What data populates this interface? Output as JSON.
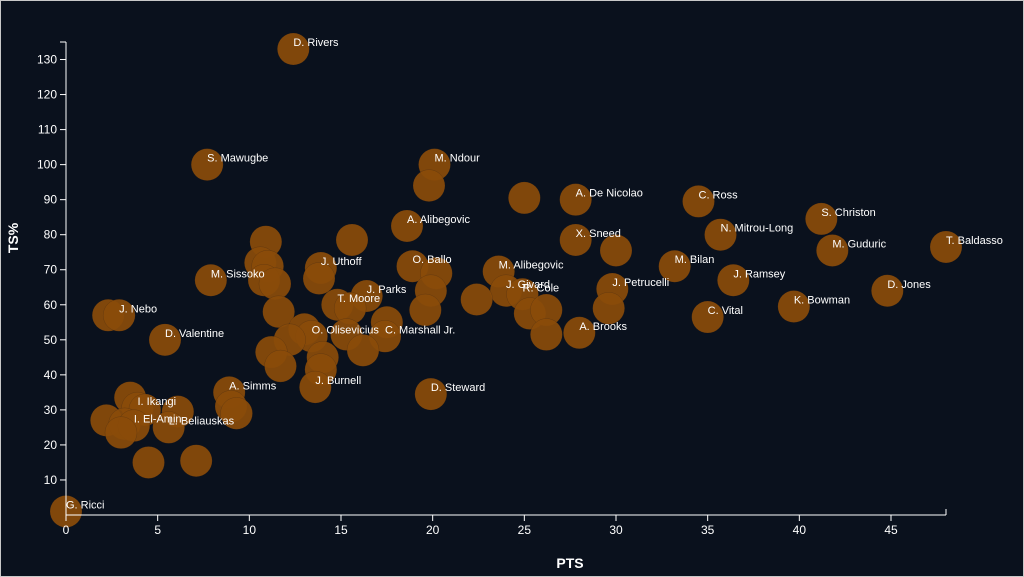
{
  "chart_data": {
    "type": "scatter",
    "title": "",
    "xlabel": "PTS",
    "ylabel": "TS%",
    "xlim": [
      0,
      48
    ],
    "ylim": [
      0,
      135
    ],
    "xticks": [
      0,
      5,
      10,
      15,
      20,
      25,
      30,
      35,
      40,
      45
    ],
    "yticks": [
      10,
      20,
      30,
      40,
      50,
      60,
      70,
      80,
      90,
      100,
      110,
      120,
      130
    ],
    "marker_color": "#8a4b0a",
    "points": [
      {
        "x": 12.4,
        "y": 133,
        "label": "D. Rivers"
      },
      {
        "x": 7.7,
        "y": 100,
        "label": "S. Mawugbe"
      },
      {
        "x": 20.1,
        "y": 100,
        "label": "M. Ndour"
      },
      {
        "x": 19.8,
        "y": 94,
        "label": ""
      },
      {
        "x": 25.0,
        "y": 90.5,
        "label": ""
      },
      {
        "x": 27.8,
        "y": 90,
        "label": "A. De Nicolao"
      },
      {
        "x": 34.5,
        "y": 89.5,
        "label": "C. Ross"
      },
      {
        "x": 41.2,
        "y": 84.5,
        "label": "S. Christon"
      },
      {
        "x": 35.7,
        "y": 80,
        "label": "N. Mitrou-Long"
      },
      {
        "x": 18.6,
        "y": 82.5,
        "label": "A. Alibegovic"
      },
      {
        "x": 15.6,
        "y": 78.5,
        "label": ""
      },
      {
        "x": 10.9,
        "y": 78,
        "label": ""
      },
      {
        "x": 27.8,
        "y": 78.5,
        "label": "X. Sneed"
      },
      {
        "x": 30.0,
        "y": 75.5,
        "label": ""
      },
      {
        "x": 41.8,
        "y": 75.5,
        "label": "M. Guduric"
      },
      {
        "x": 48.0,
        "y": 76.5,
        "label": "T. Baldasso"
      },
      {
        "x": 10.6,
        "y": 72,
        "label": ""
      },
      {
        "x": 11.0,
        "y": 71,
        "label": ""
      },
      {
        "x": 13.9,
        "y": 70.5,
        "label": "J. Uthoff"
      },
      {
        "x": 18.9,
        "y": 71,
        "label": "O. Ballo"
      },
      {
        "x": 20.2,
        "y": 69,
        "label": ""
      },
      {
        "x": 23.6,
        "y": 69.5,
        "label": "M. Alibegovic"
      },
      {
        "x": 33.2,
        "y": 71,
        "label": "M. Bilan"
      },
      {
        "x": 36.4,
        "y": 67,
        "label": "J. Ramsey"
      },
      {
        "x": 7.9,
        "y": 67,
        "label": "M. Sissoko"
      },
      {
        "x": 10.8,
        "y": 67,
        "label": ""
      },
      {
        "x": 11.4,
        "y": 66,
        "label": ""
      },
      {
        "x": 13.8,
        "y": 67.5,
        "label": ""
      },
      {
        "x": 19.9,
        "y": 64,
        "label": ""
      },
      {
        "x": 24.0,
        "y": 64,
        "label": "J. Givard"
      },
      {
        "x": 24.9,
        "y": 63,
        "label": "R. Cole"
      },
      {
        "x": 29.8,
        "y": 64.5,
        "label": "J. Petrucelli"
      },
      {
        "x": 44.8,
        "y": 64,
        "label": "D. Jones"
      },
      {
        "x": 16.4,
        "y": 62.5,
        "label": "J. Parks"
      },
      {
        "x": 22.4,
        "y": 61.5,
        "label": ""
      },
      {
        "x": 39.7,
        "y": 59.5,
        "label": "K. Bowman"
      },
      {
        "x": 14.8,
        "y": 60,
        "label": "T. Moore"
      },
      {
        "x": 15.5,
        "y": 59,
        "label": ""
      },
      {
        "x": 19.6,
        "y": 58.5,
        "label": ""
      },
      {
        "x": 25.3,
        "y": 57.5,
        "label": ""
      },
      {
        "x": 26.2,
        "y": 58.5,
        "label": ""
      },
      {
        "x": 29.6,
        "y": 59,
        "label": ""
      },
      {
        "x": 11.6,
        "y": 58,
        "label": ""
      },
      {
        "x": 2.3,
        "y": 57,
        "label": ""
      },
      {
        "x": 2.9,
        "y": 57,
        "label": "J. Nebo"
      },
      {
        "x": 35.0,
        "y": 56.5,
        "label": "C. Vital"
      },
      {
        "x": 17.5,
        "y": 55,
        "label": ""
      },
      {
        "x": 13.0,
        "y": 53,
        "label": ""
      },
      {
        "x": 5.4,
        "y": 50,
        "label": "D. Valentine"
      },
      {
        "x": 15.3,
        "y": 51.5,
        "label": ""
      },
      {
        "x": 13.4,
        "y": 51,
        "label": "O. Olisevicius"
      },
      {
        "x": 17.4,
        "y": 51,
        "label": "C. Marshall Jr."
      },
      {
        "x": 28.0,
        "y": 52,
        "label": "A. Brooks"
      },
      {
        "x": 26.2,
        "y": 51.5,
        "label": ""
      },
      {
        "x": 12.2,
        "y": 50,
        "label": ""
      },
      {
        "x": 16.2,
        "y": 47,
        "label": ""
      },
      {
        "x": 11.2,
        "y": 46.5,
        "label": ""
      },
      {
        "x": 14.0,
        "y": 45,
        "label": ""
      },
      {
        "x": 11.7,
        "y": 42.5,
        "label": ""
      },
      {
        "x": 13.9,
        "y": 41.5,
        "label": ""
      },
      {
        "x": 13.6,
        "y": 36.5,
        "label": "J. Burnell"
      },
      {
        "x": 19.9,
        "y": 34.5,
        "label": "D. Steward"
      },
      {
        "x": 8.9,
        "y": 35,
        "label": "A. Simms"
      },
      {
        "x": 3.5,
        "y": 33.5,
        "label": ""
      },
      {
        "x": 9.0,
        "y": 31,
        "label": ""
      },
      {
        "x": 3.9,
        "y": 30.5,
        "label": "I. Ikangi"
      },
      {
        "x": 4.3,
        "y": 30,
        "label": ""
      },
      {
        "x": 6.1,
        "y": 29.5,
        "label": ""
      },
      {
        "x": 9.3,
        "y": 29,
        "label": ""
      },
      {
        "x": 2.2,
        "y": 27,
        "label": ""
      },
      {
        "x": 3.2,
        "y": 26,
        "label": ""
      },
      {
        "x": 3.7,
        "y": 25.5,
        "label": "I. El-Amin"
      },
      {
        "x": 5.6,
        "y": 25,
        "label": "L. Beliauskas"
      },
      {
        "x": 3.0,
        "y": 23.5,
        "label": ""
      },
      {
        "x": 4.5,
        "y": 15,
        "label": ""
      },
      {
        "x": 7.1,
        "y": 15.5,
        "label": ""
      },
      {
        "x": 0.0,
        "y": 1,
        "label": "G. Ricci"
      }
    ]
  }
}
